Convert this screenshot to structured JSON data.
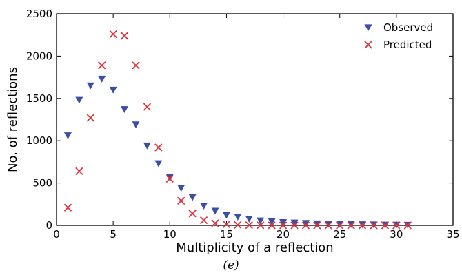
{
  "caption": "(e)",
  "chart_data": {
    "type": "scatter",
    "title": "",
    "xlabel": "Multiplicity of a reflection",
    "ylabel": "No. of reflections",
    "xlim": [
      0,
      35
    ],
    "ylim": [
      0,
      2500
    ],
    "xticks": [
      0,
      5,
      10,
      15,
      20,
      25,
      30,
      35
    ],
    "yticks": [
      0,
      500,
      1000,
      1500,
      2000,
      2500
    ],
    "grid": false,
    "legend_position": "top-right",
    "series": [
      {
        "name": "Observed",
        "marker": "triangle-down",
        "color": "#3a4fa3",
        "x": [
          1,
          2,
          3,
          4,
          5,
          6,
          7,
          8,
          9,
          10,
          11,
          12,
          13,
          14,
          15,
          16,
          17,
          18,
          19,
          20,
          21,
          22,
          23,
          24,
          25,
          26,
          27,
          28,
          29,
          30,
          31
        ],
        "y": [
          1060,
          1480,
          1650,
          1730,
          1600,
          1370,
          1190,
          940,
          730,
          570,
          440,
          330,
          230,
          170,
          120,
          100,
          75,
          55,
          45,
          35,
          30,
          25,
          20,
          18,
          15,
          12,
          10,
          8,
          6,
          5,
          4
        ]
      },
      {
        "name": "Predicted",
        "marker": "x",
        "color": "#e0323c",
        "x": [
          1,
          2,
          3,
          4,
          5,
          6,
          7,
          8,
          9,
          10,
          11,
          12,
          13,
          14,
          15,
          16,
          17,
          18,
          19,
          20,
          21,
          22,
          23,
          24,
          25,
          26,
          27,
          28,
          29,
          30,
          31
        ],
        "y": [
          210,
          640,
          1270,
          1890,
          2260,
          2240,
          1890,
          1400,
          920,
          550,
          290,
          140,
          60,
          25,
          12,
          5,
          3,
          2,
          1,
          1,
          1,
          0,
          0,
          0,
          0,
          0,
          0,
          0,
          0,
          0,
          0
        ]
      }
    ]
  }
}
